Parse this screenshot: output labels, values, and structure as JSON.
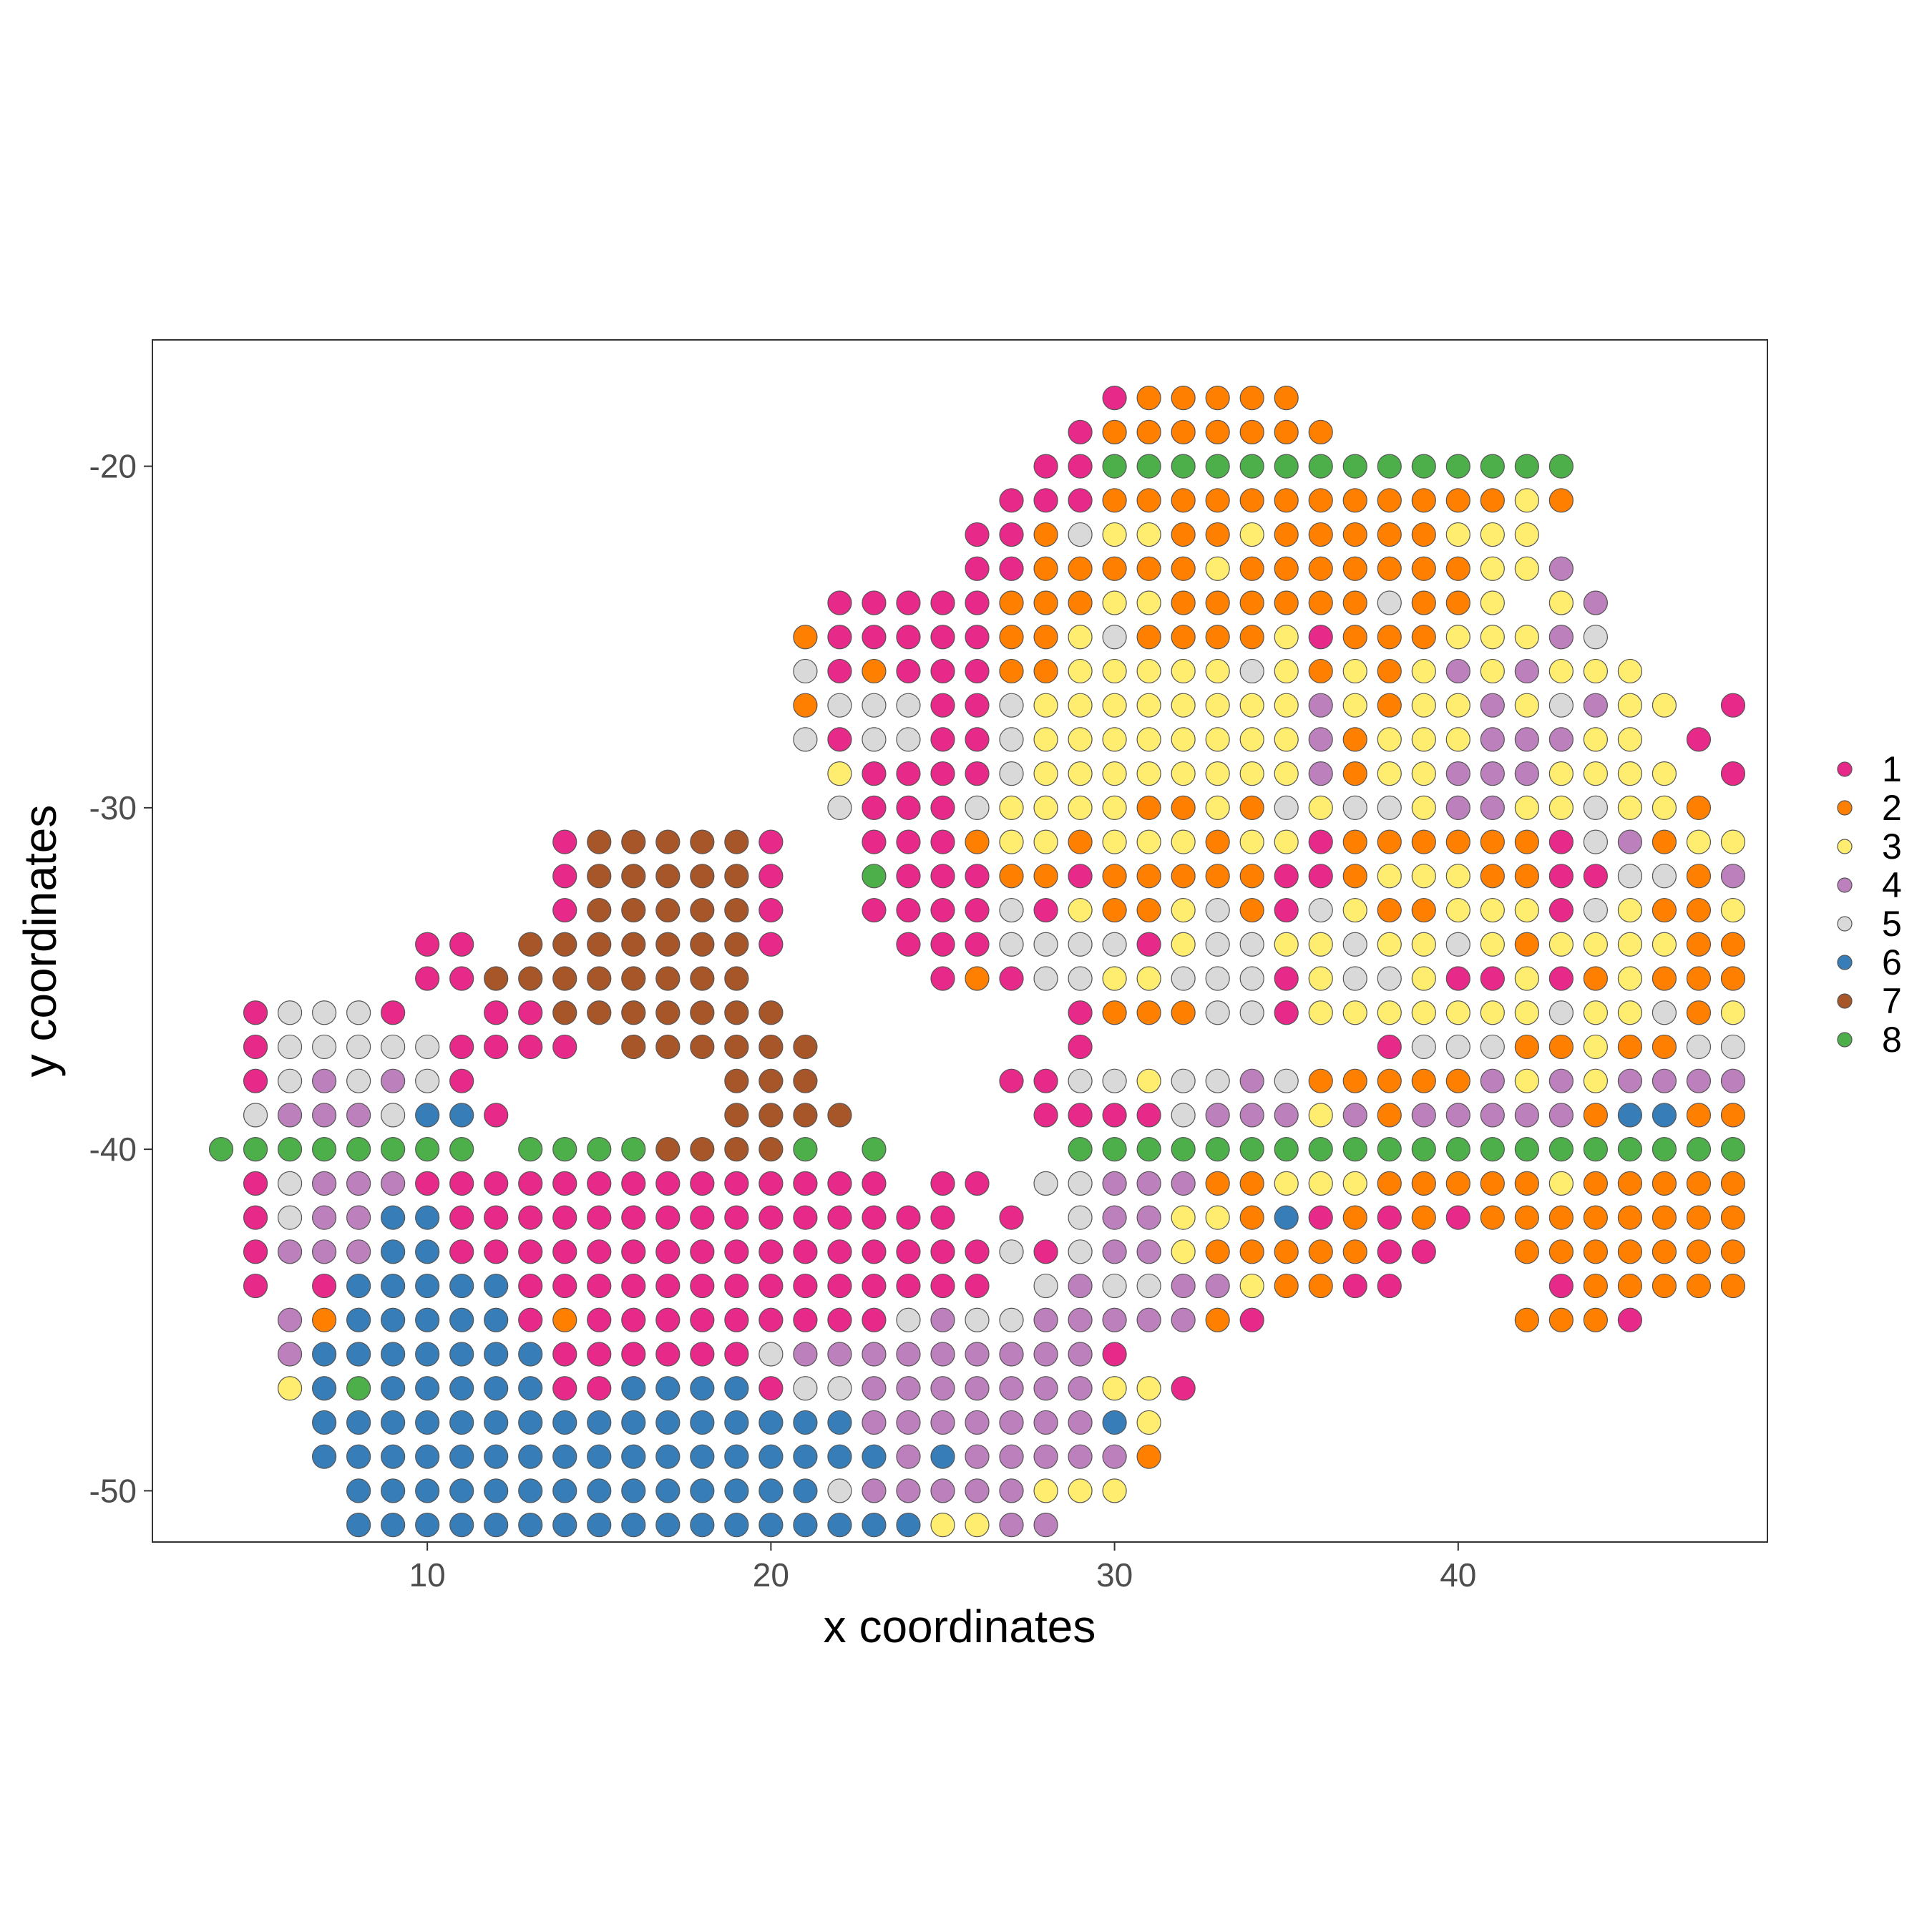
{
  "chart_data": {
    "type": "scatter",
    "xlabel": "x coordinates",
    "ylabel": "y coordinates",
    "xlim": [
      2,
      49
    ],
    "ylim": [
      -51.5,
      -16.3
    ],
    "x_ticks": [
      10,
      20,
      30,
      40
    ],
    "y_ticks": [
      -20,
      -30,
      -40,
      -50
    ],
    "grid": false,
    "legend_position": "right",
    "clusters": [
      {
        "name": "1",
        "color": "#E7298A"
      },
      {
        "name": "2",
        "color": "#FF7F00"
      },
      {
        "name": "3",
        "color": "#FFED6F"
      },
      {
        "name": "4",
        "color": "#BC80BD"
      },
      {
        "name": "5",
        "color": "#D9D9D9"
      },
      {
        "name": "6",
        "color": "#377EB8"
      },
      {
        "name": "7",
        "color": "#A65628"
      },
      {
        "name": "8",
        "color": "#4DAF4A"
      }
    ],
    "grid_x_start": 4,
    "grid_y_top": -18,
    "grid_rows": [
      "..........................122222...............",
      ".........................12222222..............",
      "........................1188888888888888.......",
      ".......................11122222222222232.......",
      "......................11253322322222333........",
      "......................112222232222222334.......",
      "..................11111222332222225223.34......",
      ".................211111223522223122233345......",
      ".................5121112233333532323434333.....",
      ".................25551153333333343233435433.1..",
      ".................5155115333333334233344433.1...",
      "..................3111153333333342334443333.1..",
      "..................51115333322325355344335332.1.",
      "..........1777771..111233233323312222221542331.",
      "..........1777771..8111221222221123332211552431",
      "..........1777771..111151322352153223331532231",
      "......11.77777771...11155551355335335323333221",
      "......1177777777.....12155335551355311312322231",
      ".15551..117777777........12225513333333533523231",
      ".1555551111.777777.......1........1555223225552531",
      ".1545451.......777.....1155355452222243434444225313",
      ".54445661......7777.....111154443424444426622242",
      "88888888.888877778.8.....88888888888888888888888",
      ".1544411111111111111.11.554442233322222322222151",
      ".154466111111111111111.1.544332612121222222222.1",
      ".14446611111111111111115154432222211..222222221",
      ".1.16666611111111111111.54554432211....12222221",
      "..42666661211111111154554444421.......2221.....",
      "..4666666611111154444444441.....................",
      "..368666661166661554444444331.....................",
      "...6666666666666666444444463......................",
      "...6666666666666666646444442......................",
      "....66666666666666544444333.......................",
      "....666666666666666663344.........................",
      "........................................................"
    ]
  }
}
